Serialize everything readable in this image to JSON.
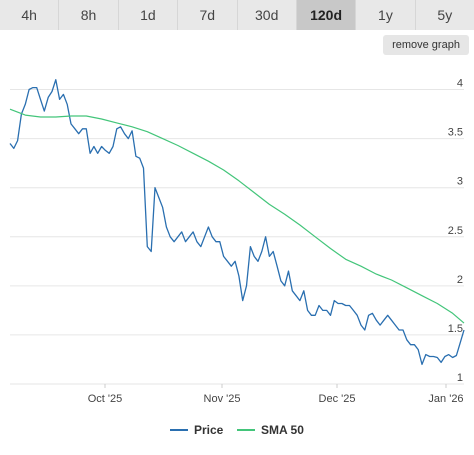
{
  "tabs": [
    {
      "label": "4h",
      "active": false
    },
    {
      "label": "8h",
      "active": false
    },
    {
      "label": "1d",
      "active": false
    },
    {
      "label": "7d",
      "active": false
    },
    {
      "label": "30d",
      "active": false
    },
    {
      "label": "120d",
      "active": true
    },
    {
      "label": "1y",
      "active": false
    },
    {
      "label": "5y",
      "active": false
    }
  ],
  "remove_graph_label": "remove graph",
  "colors": {
    "price": "#2a6fb0",
    "sma": "#43c57a",
    "grid": "#e6e6e6"
  },
  "chart_data": {
    "type": "line",
    "x_ticks": [
      "Oct '25",
      "Nov '25",
      "Dec '25",
      "Jan '26"
    ],
    "ylim": [
      1,
      4.25
    ],
    "y_ticks": [
      1,
      1.5,
      2,
      2.5,
      3,
      3.5,
      4
    ],
    "y_tick_labels": [
      "1",
      "1.5",
      "2",
      "2.5",
      "3",
      "3.5",
      "4"
    ],
    "grid": true,
    "legend_position": "bottom",
    "series": [
      {
        "name": "Price",
        "x": [
          0,
          1,
          2,
          3,
          4,
          5,
          6,
          7,
          8,
          9,
          10,
          11,
          12,
          13,
          14,
          15,
          16,
          17,
          18,
          19,
          20,
          21,
          22,
          23,
          24,
          25,
          26,
          27,
          28,
          29,
          30,
          31,
          32,
          33,
          34,
          35,
          36,
          37,
          38,
          39,
          40,
          41,
          42,
          43,
          44,
          45,
          46,
          47,
          48,
          49,
          50,
          51,
          52,
          53,
          54,
          55,
          56,
          57,
          58,
          59,
          60,
          61,
          62,
          63,
          64,
          65,
          66,
          67,
          68,
          69,
          70,
          71,
          72,
          73,
          74,
          75,
          76,
          77,
          78,
          79,
          80,
          81,
          82,
          83,
          84,
          85,
          86,
          87,
          88,
          89,
          90,
          91,
          92,
          93,
          94,
          95,
          96,
          97,
          98,
          99,
          100,
          101,
          102,
          103,
          104,
          105,
          106,
          107,
          108,
          109,
          110,
          111,
          112,
          113,
          114,
          115,
          116,
          117,
          118,
          119
        ],
        "values": [
          3.45,
          3.4,
          3.48,
          3.75,
          3.85,
          4.0,
          4.02,
          4.02,
          3.9,
          3.78,
          3.92,
          3.98,
          4.1,
          3.9,
          3.95,
          3.85,
          3.65,
          3.6,
          3.55,
          3.6,
          3.6,
          3.35,
          3.42,
          3.35,
          3.42,
          3.38,
          3.35,
          3.42,
          3.6,
          3.62,
          3.55,
          3.5,
          3.58,
          3.32,
          3.3,
          3.2,
          2.4,
          2.35,
          3.0,
          2.9,
          2.8,
          2.6,
          2.5,
          2.45,
          2.5,
          2.55,
          2.45,
          2.5,
          2.55,
          2.45,
          2.4,
          2.5,
          2.6,
          2.5,
          2.45,
          2.45,
          2.3,
          2.25,
          2.2,
          2.25,
          2.1,
          1.85,
          2.0,
          2.4,
          2.3,
          2.25,
          2.35,
          2.5,
          2.3,
          2.35,
          2.2,
          2.05,
          2.0,
          2.15,
          1.95,
          1.9,
          1.85,
          1.95,
          1.75,
          1.7,
          1.7,
          1.8,
          1.75,
          1.75,
          1.7,
          1.85,
          1.82,
          1.82,
          1.8,
          1.8,
          1.75,
          1.7,
          1.6,
          1.55,
          1.7,
          1.72,
          1.65,
          1.6,
          1.65,
          1.7,
          1.65,
          1.6,
          1.55,
          1.55,
          1.45,
          1.4,
          1.4,
          1.35,
          1.2,
          1.3,
          1.28,
          1.28,
          1.27,
          1.22,
          1.28,
          1.3,
          1.27,
          1.29,
          1.42,
          1.55
        ]
      },
      {
        "name": "SMA 50",
        "x": [
          0,
          4,
          8,
          12,
          16,
          20,
          24,
          28,
          32,
          36,
          40,
          44,
          48,
          52,
          56,
          60,
          64,
          68,
          72,
          76,
          80,
          84,
          88,
          92,
          96,
          100,
          104,
          108,
          112,
          116,
          119
        ],
        "values": [
          3.8,
          3.74,
          3.72,
          3.72,
          3.73,
          3.73,
          3.7,
          3.66,
          3.62,
          3.57,
          3.5,
          3.43,
          3.35,
          3.27,
          3.18,
          3.07,
          2.95,
          2.83,
          2.73,
          2.62,
          2.5,
          2.38,
          2.27,
          2.2,
          2.12,
          2.06,
          1.98,
          1.9,
          1.82,
          1.72,
          1.62
        ]
      }
    ]
  }
}
